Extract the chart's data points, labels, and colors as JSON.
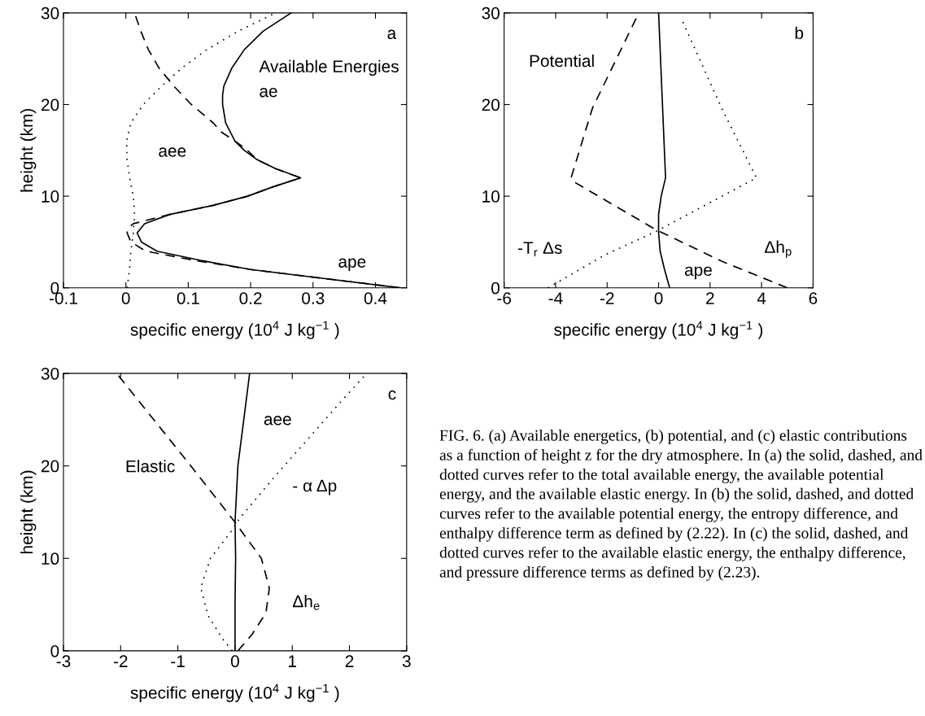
{
  "chart_data": [
    {
      "type": "line",
      "title": "Available Energies",
      "xlabel": "specific energy (10$^{4}$ J kg$^{−1}$ )",
      "ylabel": "height (km)",
      "xlim": [
        -0.1,
        0.45
      ],
      "xticks": [
        -0.1,
        0,
        0.1,
        0.2,
        0.3,
        0.4
      ],
      "ylim": [
        0,
        30
      ],
      "yticks": [
        0,
        10,
        20,
        30
      ],
      "annotations": [
        "a",
        "ae",
        "aee",
        "ape"
      ],
      "series": [
        {
          "line_style": "solid",
          "color": "#000000",
          "x": [
            0.44,
            0.2,
            0.12,
            0.05,
            0.025,
            0.018,
            0.03,
            0.07,
            0.14,
            0.195,
            0.235,
            0.28,
            0.24,
            0.21,
            0.19,
            0.175,
            0.16,
            0.155,
            0.155,
            0.157,
            0.17,
            0.19,
            0.22,
            0.265
          ],
          "values": [
            0,
            2,
            3,
            4,
            5,
            6,
            7,
            8,
            9,
            10,
            11,
            12,
            13,
            14,
            15,
            16,
            18,
            20,
            21,
            22,
            24,
            26,
            28,
            30
          ]
        },
        {
          "line_style": "dashed",
          "color": "#000000",
          "x": [
            0.44,
            0.2,
            0.11,
            0.032,
            0.008,
            0.002,
            0.004,
            0.012,
            0.07,
            0.14,
            0.195,
            0.235,
            0.28,
            0.24,
            0.21,
            0.195,
            0.175,
            0.153,
            0.14,
            0.105,
            0.077,
            0.053,
            0.036,
            0.024,
            0.014
          ],
          "values": [
            0,
            2,
            3,
            4,
            5,
            6,
            6.5,
            7,
            8,
            9,
            10,
            11,
            12,
            13,
            14,
            15,
            16,
            17,
            18,
            20,
            22,
            24,
            26,
            28,
            30
          ]
        },
        {
          "line_style": "dotted",
          "color": "#000000",
          "x": [
            0.002,
            0.006,
            0.008,
            0.012,
            0.014,
            0.012,
            0.006,
            0.002,
            0.001,
            0.008,
            0.028,
            0.057,
            0.09,
            0.13,
            0.18,
            0.24
          ],
          "values": [
            0,
            2,
            4,
            6,
            8,
            10,
            12,
            14,
            16,
            18,
            20,
            22,
            24,
            26,
            28,
            30
          ]
        }
      ]
    },
    {
      "type": "line",
      "title": "Potential",
      "xlabel": "specific energy (10$^{4}$ J kg$^{−1}$ )",
      "xlim": [
        -6,
        6
      ],
      "xticks": [
        -6,
        -4,
        -2,
        0,
        2,
        4,
        6
      ],
      "ylim": [
        0,
        30
      ],
      "yticks": [
        0,
        10,
        20,
        30
      ],
      "annotations": [
        "b",
        "-T$_{r}$ Δs",
        "ape",
        "Δh$_{p}$"
      ],
      "series": [
        {
          "line_style": "solid",
          "color": "#000000",
          "x": [
            0.43,
            0.23,
            0.06,
            0.0,
            0.0,
            0.1,
            0.27,
            0.15,
            0.0
          ],
          "values": [
            0,
            2,
            4,
            6,
            8,
            10,
            12,
            20,
            30
          ]
        },
        {
          "line_style": "dashed",
          "color": "#000000",
          "x": [
            5.0,
            2.45,
            -0.14,
            -3.25,
            -3.4,
            -2.57,
            -0.77
          ],
          "values": [
            0,
            2.9,
            6.4,
            11.5,
            12,
            19.6,
            30
          ]
        },
        {
          "line_style": "dotted",
          "color": "#000000",
          "x": [
            -4.3,
            -2.08,
            -0.14,
            3.8,
            2.45,
            0.91
          ],
          "values": [
            0,
            3.6,
            6.1,
            12,
            19.6,
            29.2
          ]
        }
      ]
    },
    {
      "type": "line",
      "title": "Elastic",
      "xlabel": "specific energy (10$^{4}$ J kg$^{−1}$ )",
      "ylabel": "height (km)",
      "xlim": [
        -3,
        3
      ],
      "xticks": [
        -3,
        -2,
        -1,
        0,
        1,
        2,
        3
      ],
      "ylim": [
        0,
        30
      ],
      "yticks": [
        0,
        10,
        20,
        30
      ],
      "annotations": [
        "c",
        "aee",
        "- α Δp",
        "Δh$_{e}$",
        "FIG. 6. (a) Available energetics, (b) potential, and (c) elastic contributions as a function of height z for the dry atmosphere. In (a) the solid, dashed, and dotted curves refer to the total available energy, the available potential energy, and the available elastic energy. In (b) the solid, dashed, and dotted curves refer to the available potential energy, the entropy difference, and enthalpy difference term as defined by (2.22). In (c) the solid, dashed, and dotted curves refer to the available elastic energy, the enthalpy difference, and pressure difference terms as defined by (2.23)."
      ],
      "series": [
        {
          "line_style": "solid",
          "color": "#000000",
          "x": [
            0.0,
            0.0,
            0.01,
            0.0,
            0.05,
            0.255
          ],
          "values": [
            0,
            5,
            10,
            14,
            20,
            30
          ]
        },
        {
          "line_style": "dashed",
          "color": "#000000",
          "x": [
            0.05,
            0.3,
            0.54,
            0.6,
            0.46,
            0.0,
            -0.8,
            -2.07
          ],
          "values": [
            0,
            1.8,
            4.1,
            6.8,
            10,
            13.9,
            20.2,
            30
          ]
        },
        {
          "line_style": "dotted",
          "color": "#000000",
          "x": [
            -0.05,
            -0.23,
            -0.47,
            -0.6,
            -0.43,
            -0.07,
            0.09,
            0.66,
            1.83,
            2.3
          ],
          "values": [
            0,
            1.4,
            3.8,
            6.8,
            10,
            12.9,
            14.4,
            18.6,
            26.8,
            30
          ]
        }
      ]
    }
  ]
}
